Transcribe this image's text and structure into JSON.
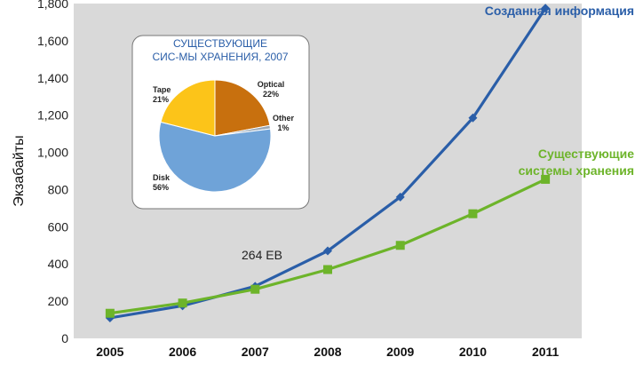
{
  "colors": {
    "plot_bg": "#d9d9d9",
    "blue_series": "#2a5ea8",
    "green_series": "#6db42a",
    "pie_tape": "#fcc419",
    "pie_optical": "#c8700e",
    "pie_disk": "#6fa3d8",
    "pie_other": "#9aa8b6"
  },
  "chart_data": [
    {
      "type": "line",
      "title": "",
      "xlabel": "",
      "ylabel": "Экзабайты",
      "ylim": [
        0,
        1800
      ],
      "yticks": [
        "0",
        "200",
        "400",
        "600",
        "800",
        "1,000",
        "1,200",
        "1,400",
        "1,600",
        "1,800"
      ],
      "categories": [
        "2005",
        "2006",
        "2007",
        "2008",
        "2009",
        "2010",
        "2011"
      ],
      "grid": false,
      "series": [
        {
          "name": "Созданная информация",
          "marker": "diamond",
          "values": [
            110,
            175,
            280,
            470,
            760,
            1185,
            1775
          ]
        },
        {
          "name": "Существующие\nсистемы хранения",
          "marker": "square",
          "values": [
            135,
            190,
            264,
            370,
            500,
            670,
            855
          ]
        }
      ],
      "annotations": [
        {
          "text": "264 EB",
          "x": "2007",
          "y": 264
        }
      ]
    },
    {
      "type": "pie",
      "title": "СУЩЕСТВУЮЩИЕ\nСИС-МЫ ХРАНЕНИЯ, 2007",
      "slices": [
        {
          "label": "Optical",
          "pct": "22%",
          "value": 22
        },
        {
          "label": "Other",
          "pct": "1%",
          "value": 1
        },
        {
          "label": "Disk",
          "pct": "56%",
          "value": 56
        },
        {
          "label": "Tape",
          "pct": "21%",
          "value": 21
        }
      ]
    }
  ]
}
